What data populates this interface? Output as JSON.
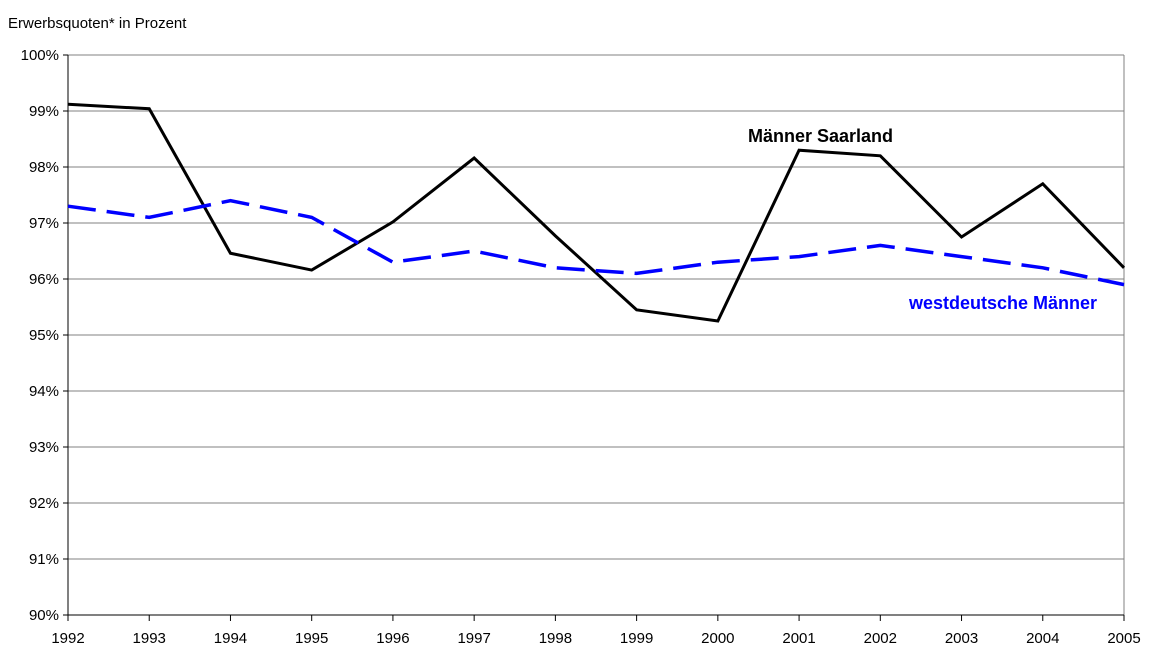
{
  "chart_data": {
    "type": "line",
    "y_label": "Erwerbsquoten* in Prozent",
    "x": [
      1992,
      1993,
      1994,
      1995,
      1996,
      1997,
      1998,
      1999,
      2000,
      2001,
      2002,
      2003,
      2004,
      2005
    ],
    "xlim": [
      1992,
      2005
    ],
    "xticks": [
      1992,
      1993,
      1994,
      1995,
      1996,
      1997,
      1998,
      1999,
      2000,
      2001,
      2002,
      2003,
      2004,
      2005
    ],
    "ylim": [
      90,
      100
    ],
    "yticks": [
      {
        "value": 90,
        "label": "90%"
      },
      {
        "value": 91,
        "label": "91%"
      },
      {
        "value": 92,
        "label": "92%"
      },
      {
        "value": 93,
        "label": "93%"
      },
      {
        "value": 94,
        "label": "94%"
      },
      {
        "value": 95,
        "label": "95%"
      },
      {
        "value": 96,
        "label": "96%"
      },
      {
        "value": 97,
        "label": "97%"
      },
      {
        "value": 98,
        "label": "98%"
      },
      {
        "value": 99,
        "label": "99%"
      },
      {
        "value": 100,
        "label": "100%"
      }
    ],
    "grid": true,
    "series": [
      {
        "name": "Männer Saarland",
        "color": "#000000",
        "dashed": false,
        "values": [
          99.12,
          99.04,
          96.46,
          96.16,
          97.02,
          98.16,
          96.77,
          95.45,
          95.25,
          98.3,
          98.2,
          96.75,
          97.7,
          96.2
        ]
      },
      {
        "name": "westdeutsche Männer",
        "color": "#0000ff",
        "dashed": true,
        "values": [
          97.3,
          97.1,
          97.4,
          97.1,
          96.3,
          96.5,
          96.2,
          96.1,
          96.3,
          96.4,
          96.6,
          96.4,
          96.2,
          95.9
        ]
      }
    ]
  }
}
